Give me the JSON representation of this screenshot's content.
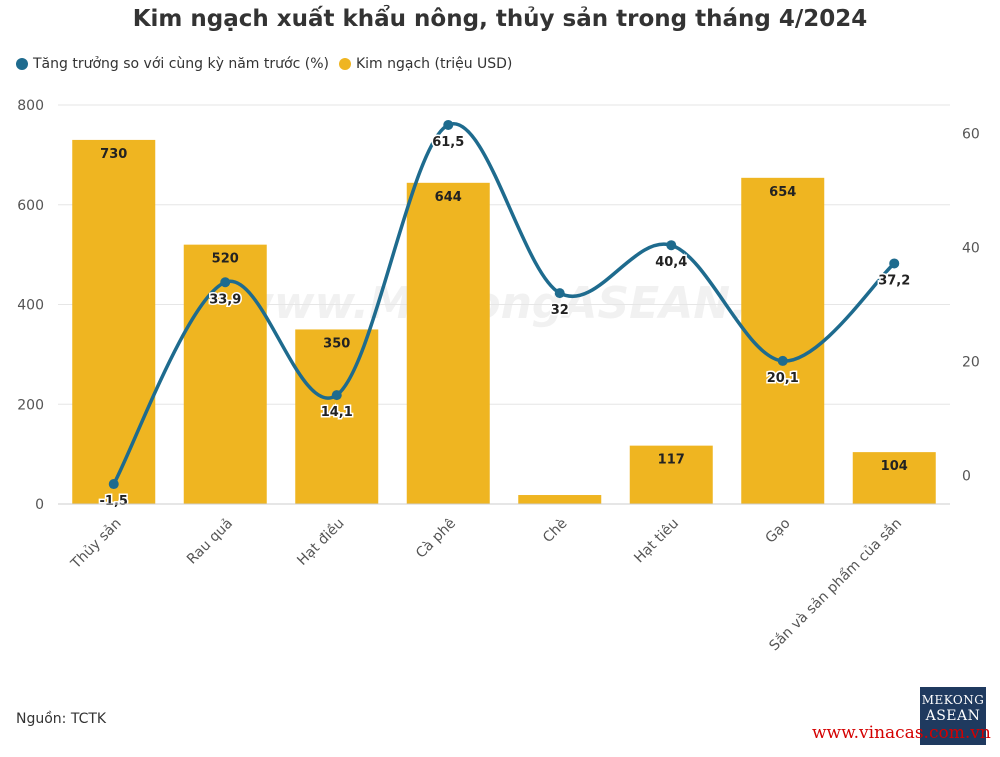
{
  "title": "Kim ngạch xuất khẩu nông, thủy sản trong tháng 4/2024",
  "legend": {
    "growth_label": "Tăng trưởng so với cùng kỳ năm trước (%)",
    "value_label": "Kim ngạch (triệu USD)"
  },
  "source": "Nguồn: TCTK",
  "watermark": "www.MekongASEAN.vn",
  "logo": {
    "line1": "MEKONG",
    "line2": "ASEAN"
  },
  "website": "www.vinacas.com.vn",
  "colors": {
    "bar": "#efb521",
    "line": "#1e6b8e",
    "grid": "#e6e6e6",
    "text": "#333333"
  },
  "chart_data": {
    "type": "bar+line",
    "categories": [
      "Thủy sản",
      "Rau quả",
      "Hạt điều",
      "Cà phê",
      "Chè",
      "Hạt tiêu",
      "Gạo",
      "Sắn và sản phẩm của sắn"
    ],
    "series": [
      {
        "name": "Kim ngạch (triệu USD)",
        "type": "bar",
        "axis": "left",
        "values": [
          730,
          520,
          350,
          644,
          18,
          117,
          654,
          104
        ],
        "labels": [
          "730",
          "520",
          "350",
          "644",
          "",
          "117",
          "654",
          "104"
        ]
      },
      {
        "name": "Tăng trưởng so với cùng kỳ năm trước (%)",
        "type": "line",
        "axis": "right",
        "values": [
          -1.5,
          33.9,
          14.1,
          61.5,
          32,
          40.4,
          20.1,
          37.2
        ],
        "labels": [
          "-1,5",
          "33,9",
          "14,1",
          "61,5",
          "32",
          "40,4",
          "20,1",
          "37,2"
        ]
      }
    ],
    "y_left": {
      "min": 0,
      "max": 800,
      "ticks": [
        0,
        200,
        400,
        600,
        800
      ]
    },
    "y_right": {
      "min": -5,
      "max": 65,
      "ticks": [
        0,
        20,
        40,
        60
      ]
    },
    "legend_position": "top-left"
  }
}
